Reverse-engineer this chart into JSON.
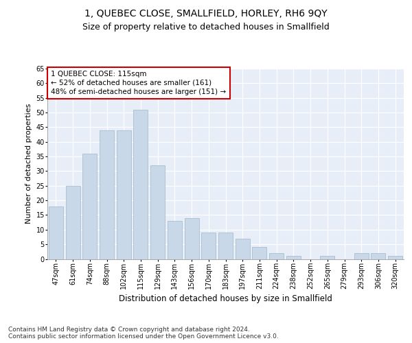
{
  "title": "1, QUEBEC CLOSE, SMALLFIELD, HORLEY, RH6 9QY",
  "subtitle": "Size of property relative to detached houses in Smallfield",
  "xlabel": "Distribution of detached houses by size in Smallfield",
  "ylabel": "Number of detached properties",
  "categories": [
    "47sqm",
    "61sqm",
    "74sqm",
    "88sqm",
    "102sqm",
    "115sqm",
    "129sqm",
    "143sqm",
    "156sqm",
    "170sqm",
    "183sqm",
    "197sqm",
    "211sqm",
    "224sqm",
    "238sqm",
    "252sqm",
    "265sqm",
    "279sqm",
    "293sqm",
    "306sqm",
    "320sqm"
  ],
  "values": [
    18,
    25,
    36,
    44,
    44,
    51,
    32,
    13,
    14,
    9,
    9,
    7,
    4,
    2,
    1,
    0,
    1,
    0,
    2,
    2,
    1
  ],
  "bar_color": "#c8d8e8",
  "bar_edge_color": "#a8bece",
  "highlight_index": 5,
  "annotation_text": "1 QUEBEC CLOSE: 115sqm\n← 52% of detached houses are smaller (161)\n48% of semi-detached houses are larger (151) →",
  "annotation_box_color": "white",
  "annotation_box_edge_color": "#cc0000",
  "ylim": [
    0,
    65
  ],
  "yticks": [
    0,
    5,
    10,
    15,
    20,
    25,
    30,
    35,
    40,
    45,
    50,
    55,
    60,
    65
  ],
  "background_color": "#e8eef8",
  "grid_color": "white",
  "footer_text": "Contains HM Land Registry data © Crown copyright and database right 2024.\nContains public sector information licensed under the Open Government Licence v3.0.",
  "title_fontsize": 10,
  "subtitle_fontsize": 9,
  "xlabel_fontsize": 8.5,
  "ylabel_fontsize": 8,
  "tick_fontsize": 7,
  "annotation_fontsize": 7.5,
  "footer_fontsize": 6.5
}
